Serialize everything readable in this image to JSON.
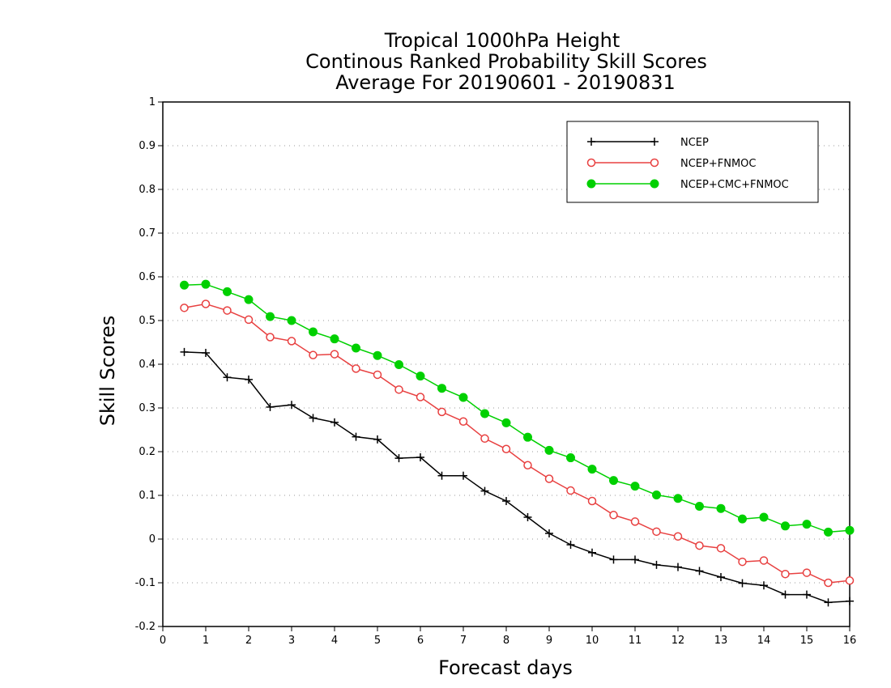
{
  "chart_data": {
    "type": "line",
    "title": [
      "Tropical 1000hPa Height",
      "Continous Ranked Probability Skill Scores",
      "Average For 20190601 - 20190831"
    ],
    "xlabel": "Forecast days",
    "ylabel": "Skill Scores",
    "xlim": [
      0,
      16
    ],
    "ylim": [
      -0.2,
      1
    ],
    "x_ticks": [
      "0",
      "1",
      "2",
      "3",
      "4",
      "5",
      "6",
      "7",
      "8",
      "9",
      "10",
      "11",
      "12",
      "13",
      "14",
      "15",
      "16"
    ],
    "y_ticks": [
      "-0.2",
      "-0.1",
      "0",
      "0.1",
      "0.2",
      "0.3",
      "0.4",
      "0.5",
      "0.6",
      "0.7",
      "0.8",
      "0.9",
      "1"
    ],
    "grid": "horizontal-dotted",
    "legend_position": "top-right",
    "x": [
      0.5,
      1,
      1.5,
      2,
      2.5,
      3,
      3.5,
      4,
      4.5,
      5,
      5.5,
      6,
      6.5,
      7,
      7.5,
      8,
      8.5,
      9,
      9.5,
      10,
      10.5,
      11,
      11.5,
      12,
      12.5,
      13,
      13.5,
      14,
      14.5,
      15,
      15.5,
      16
    ],
    "series": [
      {
        "name": "NCEP",
        "color": "#000000",
        "marker": "plus",
        "values": [
          0.428,
          0.426,
          0.37,
          0.365,
          0.302,
          0.307,
          0.277,
          0.267,
          0.234,
          0.228,
          0.185,
          0.187,
          0.145,
          0.145,
          0.11,
          0.087,
          0.05,
          0.013,
          -0.013,
          -0.031,
          -0.047,
          -0.047,
          -0.059,
          -0.064,
          -0.073,
          -0.087,
          -0.101,
          -0.106,
          -0.127,
          -0.127,
          -0.145,
          -0.142
        ]
      },
      {
        "name": "NCEP+FNMOC",
        "color": "#e84040",
        "marker": "open-circle",
        "values": [
          0.529,
          0.538,
          0.523,
          0.502,
          0.462,
          0.453,
          0.421,
          0.423,
          0.39,
          0.376,
          0.342,
          0.325,
          0.291,
          0.269,
          0.23,
          0.206,
          0.169,
          0.138,
          0.111,
          0.087,
          0.055,
          0.04,
          0.017,
          0.006,
          -0.015,
          -0.021,
          -0.052,
          -0.049,
          -0.08,
          -0.077,
          -0.1,
          -0.095
        ]
      },
      {
        "name": "NCEP+CMC+FNMOC",
        "color": "#00d000",
        "marker": "filled-circle",
        "values": [
          0.581,
          0.583,
          0.566,
          0.548,
          0.509,
          0.5,
          0.474,
          0.458,
          0.437,
          0.42,
          0.399,
          0.373,
          0.345,
          0.324,
          0.287,
          0.266,
          0.233,
          0.203,
          0.186,
          0.16,
          0.134,
          0.121,
          0.101,
          0.093,
          0.075,
          0.07,
          0.046,
          0.05,
          0.03,
          0.034,
          0.016,
          0.02
        ]
      }
    ]
  }
}
